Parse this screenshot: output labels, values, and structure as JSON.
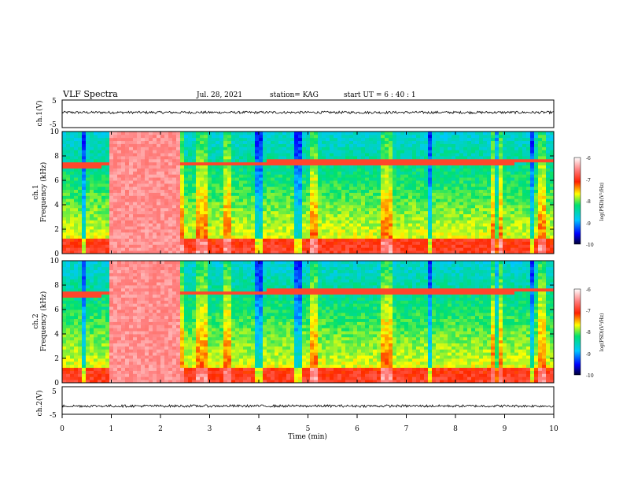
{
  "header": {
    "title": "VLF Spectra",
    "date": "Jul. 28, 2021",
    "station": "station= KAG",
    "start": "start  UT =   6 : 40 : 1"
  },
  "chart_data": [
    {
      "type": "line",
      "name": "ch1-waveform",
      "ylabel": "ch.1(V)",
      "ylim": [
        -5,
        5
      ],
      "yticks": [
        "5",
        "-5"
      ],
      "xlim": [
        0,
        10
      ],
      "baseline": 0.5
    },
    {
      "type": "heatmap",
      "name": "ch1-spectrogram",
      "ylabel": "ch.1",
      "ylabel2": "Frequency  (kHz)",
      "xlim": [
        0,
        10
      ],
      "ylim": [
        0,
        10
      ],
      "yticks": [
        0,
        2,
        4,
        6,
        8,
        10
      ],
      "colorbar": {
        "label": "log(PSD)(V²/Hz)",
        "ticks": [
          "-6",
          "-7",
          "-8",
          "-9",
          "-10"
        ],
        "range": [
          -10,
          -6
        ]
      },
      "tone_khz": [
        7.3,
        7.6
      ],
      "saturated_interval_min": [
        1.0,
        2.4
      ],
      "bright_stripes_min": [
        2.42,
        2.83,
        3.35,
        5.1,
        6.6,
        8.85,
        9.75
      ],
      "dark_stripes_min": [
        0.45,
        4.0,
        4.8,
        7.5,
        8.85,
        9.55
      ]
    },
    {
      "type": "heatmap",
      "name": "ch2-spectrogram",
      "ylabel": "ch.2",
      "ylabel2": "Frequency  (kHz)",
      "xlim": [
        0,
        10
      ],
      "ylim": [
        0,
        10
      ],
      "yticks": [
        0,
        2,
        4,
        6,
        8,
        10
      ],
      "colorbar": {
        "label": "log(PSD)(V²/Hz)",
        "ticks": [
          "-6",
          "-7",
          "-8",
          "-9",
          "-10"
        ],
        "range": [
          -10,
          -6
        ]
      },
      "tone_khz": [
        7.3,
        7.6
      ],
      "saturated_interval_min": [
        1.0,
        2.4
      ],
      "bright_stripes_min": [
        2.42,
        2.83,
        3.35,
        5.1,
        6.6,
        8.85,
        9.75
      ],
      "dark_stripes_min": [
        0.45,
        4.0,
        4.8,
        7.5,
        8.85,
        9.55
      ]
    },
    {
      "type": "line",
      "name": "ch2-waveform",
      "ylabel": "ch.2(V)",
      "ylim": [
        -5,
        5
      ],
      "yticks": [
        "5",
        "-5"
      ],
      "xlim": [
        0,
        10
      ],
      "baseline": -2,
      "xlabel": "Time  (min)",
      "xticks": [
        0,
        1,
        2,
        3,
        4,
        5,
        6,
        7,
        8,
        9,
        10
      ]
    }
  ],
  "colors": {
    "frame": "#000000",
    "saturated": "#f08080",
    "background": "#ffffff"
  }
}
